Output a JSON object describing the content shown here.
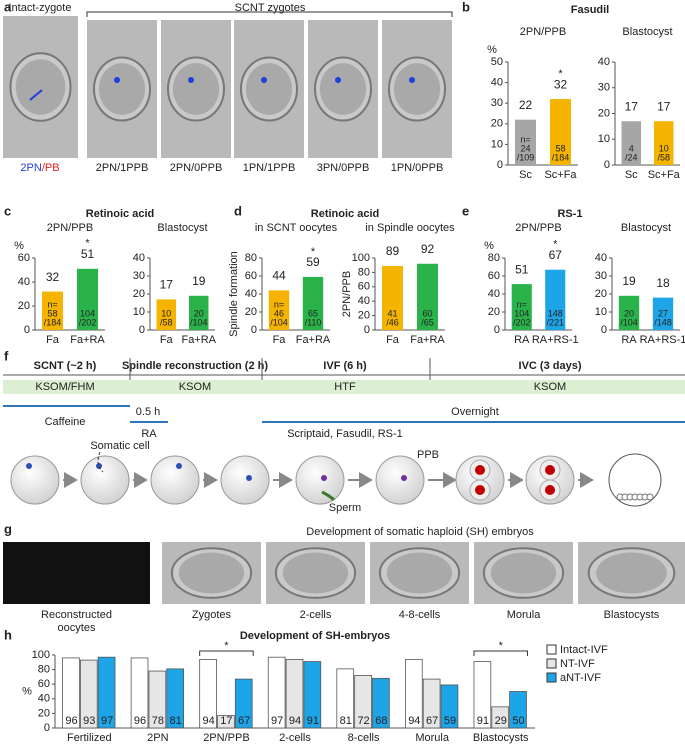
{
  "panel_letters": [
    "a",
    "b",
    "c",
    "d",
    "e",
    "f",
    "g",
    "h"
  ],
  "panel_a": {
    "intact_label": "Intact-zygote",
    "scnt_label": "SCNT zygotes",
    "intact_caption": [
      "2PN",
      "/PB"
    ],
    "captions": [
      "2PN/1PPB",
      "2PN/0PPB",
      "1PN/1PPB",
      "3PN/0PPB",
      "1PN/0PPB"
    ]
  },
  "panel_titles": {
    "b": "Fasudil",
    "c": "Retinoic acid",
    "d": "Retinoic acid",
    "e": "RS-1"
  },
  "panel_f": {
    "stages": [
      "SCNT (~2 h)",
      "Spindle reconstruction (2 h)",
      "IVF (6 h)",
      "IVC (3 days)"
    ],
    "media": [
      "KSOM/FHM",
      "KSOM",
      "HTF",
      "KSOM"
    ],
    "caffeine": "Caffeine",
    "ra_time": "0.5 h",
    "ra": "RA",
    "overnight": "Overnight",
    "drugs": "Scriptaid, Fasudil, RS-1",
    "somatic_cell": "Somatic cell",
    "ppb": "PPB",
    "sperm": "Sperm"
  },
  "panel_g": {
    "title": "Development of somatic haploid (SH) embryos",
    "captions": [
      [
        "Reconstructed",
        "oocytes"
      ],
      [
        "Zygotes"
      ],
      [
        "2-cells"
      ],
      [
        "4-8-cells"
      ],
      [
        "Morula"
      ],
      [
        "Blastocysts"
      ]
    ]
  },
  "chart_data": [
    {
      "type": "bar",
      "title": "2PN/PPB",
      "y_label": "%",
      "categories": [
        "Sc",
        "Sc+Fa"
      ],
      "values": [
        22,
        32
      ],
      "colors": [
        "#a6a6a6",
        "#f5b400"
      ],
      "n_labels": [
        [
          "n=",
          "24",
          "/109"
        ],
        [
          "58",
          "/184"
        ]
      ],
      "significance_labels": [
        null,
        "*"
      ],
      "ylim": [
        0,
        50
      ],
      "yticks": [
        0,
        10,
        20,
        30,
        40,
        50
      ]
    },
    {
      "type": "bar",
      "title": "Blastocyst",
      "categories": [
        "Sc",
        "Sc+Fa"
      ],
      "values": [
        17,
        17
      ],
      "colors": [
        "#a6a6a6",
        "#f5b400"
      ],
      "n_labels": [
        [
          "4",
          "/24"
        ],
        [
          "10",
          "/58"
        ]
      ],
      "ylim": [
        0,
        40
      ],
      "yticks": [
        0,
        10,
        20,
        30,
        40
      ]
    },
    {
      "type": "bar",
      "title": "2PN/PPB",
      "y_label": "%",
      "categories": [
        "Fa",
        "Fa+RA"
      ],
      "values": [
        32,
        51
      ],
      "colors": [
        "#f5b400",
        "#2bb34b"
      ],
      "n_labels": [
        [
          "n=",
          "58",
          "/184"
        ],
        [
          "104",
          "/202"
        ]
      ],
      "significance_labels": [
        null,
        "*"
      ],
      "ylim": [
        0,
        60
      ],
      "yticks": [
        0,
        20,
        40,
        60
      ]
    },
    {
      "type": "bar",
      "title": "Blastocyst",
      "categories": [
        "Fa",
        "Fa+RA"
      ],
      "values": [
        17,
        19
      ],
      "colors": [
        "#f5b400",
        "#2bb34b"
      ],
      "n_labels": [
        [
          "10",
          "/58"
        ],
        [
          "20",
          "/104"
        ]
      ],
      "ylim": [
        0,
        40
      ],
      "yticks": [
        0,
        10,
        20,
        30,
        40
      ]
    },
    {
      "type": "bar",
      "title": "in SCNT oocytes",
      "y_label": "Spindle formation",
      "categories": [
        "Fa",
        "Fa+RA"
      ],
      "values": [
        44,
        59
      ],
      "colors": [
        "#f5b400",
        "#2bb34b"
      ],
      "n_labels": [
        [
          "n=",
          "46",
          "/104"
        ],
        [
          "65",
          "/110"
        ]
      ],
      "significance_labels": [
        null,
        "*"
      ],
      "ylim": [
        0,
        80
      ],
      "yticks": [
        0,
        20,
        40,
        60,
        80
      ]
    },
    {
      "type": "bar",
      "title": "in Spindle oocytes",
      "y_label": "2PN/PPB",
      "categories": [
        "Fa",
        "Fa+RA"
      ],
      "values": [
        89,
        92
      ],
      "colors": [
        "#f5b400",
        "#2bb34b"
      ],
      "n_labels": [
        [
          "41",
          "/46"
        ],
        [
          "60",
          "/65"
        ]
      ],
      "ylim": [
        0,
        100
      ],
      "yticks": [
        0,
        20,
        40,
        60,
        80,
        100
      ]
    },
    {
      "type": "bar",
      "title": "2PN/PPB",
      "y_label": "%",
      "categories": [
        "RA",
        "RA+RS-1"
      ],
      "values": [
        51,
        67
      ],
      "colors": [
        "#2bb34b",
        "#1ea5e8"
      ],
      "n_labels": [
        [
          "n=",
          "104",
          "/202"
        ],
        [
          "148",
          "/221"
        ]
      ],
      "significance_labels": [
        null,
        "*"
      ],
      "ylim": [
        0,
        80
      ],
      "yticks": [
        0,
        20,
        40,
        60,
        80
      ]
    },
    {
      "type": "bar",
      "title": "Blastocyst",
      "categories": [
        "RA",
        "RA+RS-1"
      ],
      "values": [
        19,
        18
      ],
      "colors": [
        "#2bb34b",
        "#1ea5e8"
      ],
      "n_labels": [
        [
          "20",
          "/104"
        ],
        [
          "27",
          "/148"
        ]
      ],
      "ylim": [
        0,
        40
      ],
      "yticks": [
        0,
        10,
        20,
        30,
        40
      ]
    },
    {
      "type": "bar",
      "title": "Development of SH-embryos",
      "y_label": "%",
      "categories": [
        "Fertilized",
        "2PN",
        "2PN/PPB",
        "2-cells",
        "8-cells",
        "Morula",
        "Blastocysts"
      ],
      "series": [
        {
          "name": "Intact-IVF",
          "color": "#ffffff",
          "values": [
            96,
            96,
            94,
            97,
            81,
            94,
            91
          ]
        },
        {
          "name": "NT-IVF",
          "color": "#e6e6e6",
          "values": [
            93,
            78,
            17,
            94,
            72,
            67,
            29
          ]
        },
        {
          "name": "aNT-IVF",
          "color": "#1ea5e8",
          "values": [
            97,
            81,
            67,
            91,
            68,
            59,
            50
          ]
        }
      ],
      "significance_labels": [
        null,
        null,
        "*",
        null,
        null,
        null,
        "*"
      ],
      "legend": "right",
      "ylim": [
        0,
        100
      ],
      "yticks": [
        0,
        20,
        40,
        60,
        80,
        100
      ]
    }
  ]
}
